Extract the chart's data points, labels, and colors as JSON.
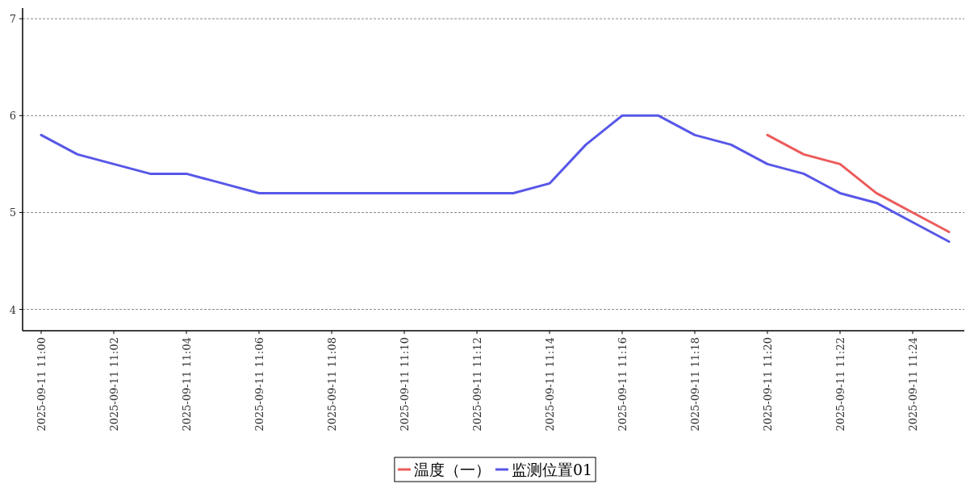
{
  "chart_data": {
    "type": "line",
    "categories": [
      "2025-09-11 11:00",
      null,
      "2025-09-11 11:02",
      null,
      "2025-09-11 11:04",
      null,
      "2025-09-11 11:06",
      null,
      "2025-09-11 11:08",
      null,
      "2025-09-11 11:10",
      null,
      "2025-09-11 11:12",
      null,
      "2025-09-11 11:14",
      null,
      "2025-09-11 11:16",
      null,
      "2025-09-11 11:18",
      null,
      "2025-09-11 11:20",
      null,
      "2025-09-11 11:22",
      null,
      "2025-09-11 11:24",
      null
    ],
    "series": [
      {
        "name": "温度（一）",
        "color": "#ec5b5b",
        "values": [
          null,
          null,
          null,
          null,
          null,
          null,
          null,
          null,
          null,
          null,
          null,
          null,
          null,
          null,
          null,
          null,
          null,
          null,
          null,
          null,
          5.8,
          5.6,
          5.5,
          5.2,
          5.0,
          4.8
        ]
      },
      {
        "name": "监测位置01",
        "color": "#5757e8",
        "values": [
          5.8,
          5.6,
          5.5,
          5.4,
          5.4,
          5.3,
          5.2,
          5.2,
          5.2,
          5.2,
          5.2,
          5.2,
          5.2,
          5.2,
          5.3,
          5.7,
          6.0,
          6.0,
          5.8,
          5.7,
          5.5,
          5.4,
          5.2,
          5.1,
          4.9,
          4.7
        ]
      }
    ],
    "ylim": [
      3.78,
      7.11
    ],
    "yticks": [
      4,
      5,
      6,
      7
    ],
    "grid": "y",
    "legend": "bottom",
    "marker": "none",
    "line_style": "solid"
  }
}
